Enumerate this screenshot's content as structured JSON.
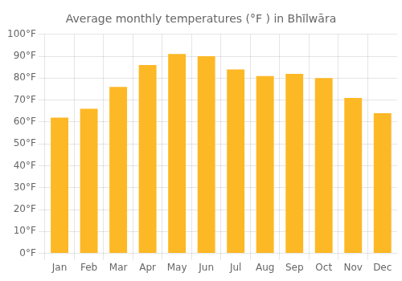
{
  "chart_data": {
    "type": "bar",
    "title": "Average monthly temperatures (°F ) in Bhīlwāra",
    "categories": [
      "Jan",
      "Feb",
      "Mar",
      "Apr",
      "May",
      "Jun",
      "Jul",
      "Aug",
      "Sep",
      "Oct",
      "Nov",
      "Dec"
    ],
    "values": [
      62,
      66,
      76,
      86,
      91,
      90,
      84,
      81,
      82,
      80,
      71,
      64
    ],
    "color": "#FDB825",
    "ylim": [
      0,
      100
    ],
    "yticks": [
      {
        "value": 0,
        "label": "0°F"
      },
      {
        "value": 10,
        "label": "10°F"
      },
      {
        "value": 20,
        "label": "20°F"
      },
      {
        "value": 30,
        "label": "30°F"
      },
      {
        "value": 40,
        "label": "40°F"
      },
      {
        "value": 50,
        "label": "50°F"
      },
      {
        "value": 60,
        "label": "60°F"
      },
      {
        "value": 70,
        "label": "70°F"
      },
      {
        "value": 80,
        "label": "80°F"
      },
      {
        "value": 90,
        "label": "90°F"
      },
      {
        "value": 100,
        "label": "100°F"
      }
    ],
    "grid": true
  }
}
